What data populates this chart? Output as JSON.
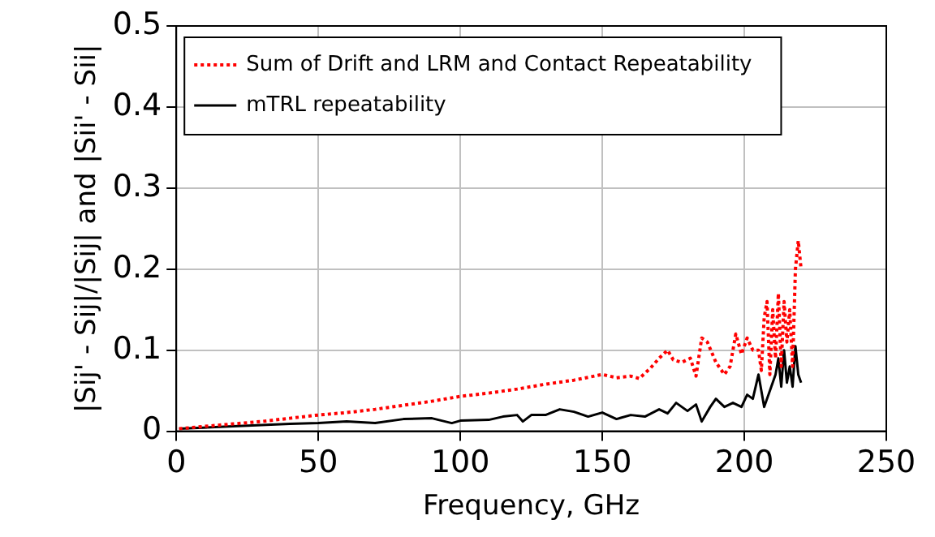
{
  "chart_data": {
    "type": "line",
    "xlabel": "Frequency, GHz",
    "ylabel": "|Sij' - Sij|/|Sij| and |Sii' - Sii|",
    "xlim": [
      0,
      250
    ],
    "xticks": [
      0,
      50,
      100,
      150,
      200,
      250
    ],
    "ylim": [
      0,
      0.5
    ],
    "yticks": [
      0,
      0.1,
      0.2,
      0.3,
      0.4,
      0.5
    ],
    "grid": true,
    "legend": "top",
    "marker": "none",
    "series": [
      {
        "name": "Sum of Drift and LRM and Contact Repeatability",
        "color": "#ff0000",
        "line_style": "dotted",
        "x": [
          1,
          10,
          20,
          30,
          40,
          50,
          60,
          70,
          80,
          90,
          100,
          110,
          120,
          130,
          140,
          150,
          155,
          160,
          163,
          167,
          170,
          173,
          175,
          178,
          181,
          183,
          185,
          187,
          190,
          193,
          195,
          197,
          199,
          201,
          203,
          205,
          206,
          207,
          208,
          209,
          210,
          211,
          212,
          213,
          214,
          215,
          216,
          217,
          218,
          219,
          220
        ],
        "values": [
          0.003,
          0.006,
          0.009,
          0.012,
          0.016,
          0.02,
          0.023,
          0.027,
          0.032,
          0.037,
          0.043,
          0.047,
          0.052,
          0.058,
          0.063,
          0.07,
          0.066,
          0.068,
          0.065,
          0.078,
          0.09,
          0.1,
          0.088,
          0.085,
          0.09,
          0.068,
          0.115,
          0.11,
          0.085,
          0.07,
          0.08,
          0.12,
          0.095,
          0.115,
          0.1,
          0.1,
          0.075,
          0.14,
          0.16,
          0.07,
          0.15,
          0.09,
          0.17,
          0.08,
          0.16,
          0.11,
          0.15,
          0.08,
          0.2,
          0.235,
          0.2
        ]
      },
      {
        "name": "mTRL repeatability",
        "color": "#000000",
        "line_style": "solid",
        "x": [
          1,
          20,
          40,
          50,
          60,
          70,
          80,
          90,
          97,
          100,
          110,
          115,
          120,
          122,
          125,
          130,
          135,
          140,
          145,
          150,
          155,
          160,
          165,
          170,
          173,
          176,
          180,
          183,
          185,
          188,
          190,
          193,
          196,
          199,
          201,
          203,
          205,
          207,
          209,
          211,
          212,
          213,
          214,
          215,
          216,
          217,
          218,
          219,
          220
        ],
        "values": [
          0.003,
          0.006,
          0.009,
          0.01,
          0.012,
          0.01,
          0.015,
          0.016,
          0.01,
          0.013,
          0.014,
          0.018,
          0.02,
          0.012,
          0.02,
          0.02,
          0.027,
          0.024,
          0.018,
          0.023,
          0.015,
          0.02,
          0.018,
          0.027,
          0.022,
          0.035,
          0.025,
          0.033,
          0.012,
          0.03,
          0.04,
          0.03,
          0.035,
          0.03,
          0.045,
          0.04,
          0.07,
          0.03,
          0.05,
          0.07,
          0.09,
          0.055,
          0.1,
          0.06,
          0.08,
          0.055,
          0.105,
          0.07,
          0.06
        ]
      }
    ]
  }
}
